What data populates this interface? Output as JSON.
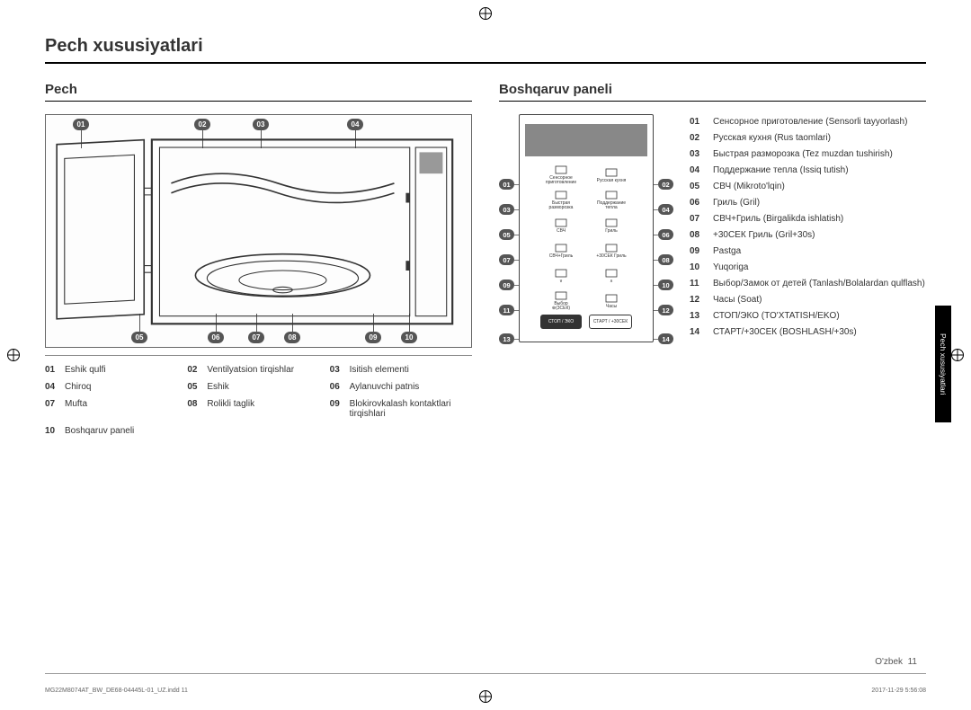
{
  "title": "Pech xususiyatlari",
  "left": {
    "heading": "Pech",
    "callouts_top": [
      "01",
      "02",
      "03",
      "04"
    ],
    "callouts_bottom": [
      "05",
      "06",
      "07",
      "08",
      "09",
      "10"
    ],
    "legend": [
      [
        {
          "n": "01",
          "t": "Eshik qulfi"
        },
        {
          "n": "02",
          "t": "Ventilyatsion tirqishlar"
        },
        {
          "n": "03",
          "t": "Isitish elementi"
        }
      ],
      [
        {
          "n": "04",
          "t": "Chiroq"
        },
        {
          "n": "05",
          "t": "Eshik"
        },
        {
          "n": "06",
          "t": "Aylanuvchi patnis"
        }
      ],
      [
        {
          "n": "07",
          "t": "Mufta"
        },
        {
          "n": "08",
          "t": "Rolikli taglik"
        },
        {
          "n": "09",
          "t": "Blokirovkalash kontaktlari tirqishlari"
        }
      ],
      [
        {
          "n": "10",
          "t": "Boshqaruv paneli"
        },
        {
          "n": "",
          "t": ""
        },
        {
          "n": "",
          "t": ""
        }
      ]
    ]
  },
  "right": {
    "heading": "Boshqaruv paneli",
    "panel_calls_left": [
      "01",
      "03",
      "05",
      "07",
      "09",
      "11",
      "13"
    ],
    "panel_calls_right": [
      "02",
      "04",
      "06",
      "08",
      "10",
      "12",
      "14"
    ],
    "buttons": [
      {
        "label": "Сенсорное\nприготовление"
      },
      {
        "label": "Русская кухня"
      },
      {
        "label": "Быстрая\nразморозка"
      },
      {
        "label": "Поддержание\nтепла"
      },
      {
        "label": "СВЧ"
      },
      {
        "label": "Гриль"
      },
      {
        "label": "СВЧ+Гриль"
      },
      {
        "label": "+30СЕК Гриль"
      },
      {
        "label": "∨"
      },
      {
        "label": "∧"
      },
      {
        "label": "Выбор\n⊕(3СЕК)"
      },
      {
        "label": "Часы"
      }
    ],
    "pill_left": "СТОП / ЭКО",
    "pill_right": "СТАРТ / +30СЕК",
    "list": [
      {
        "n": "01",
        "t": "Сенсорное приготовление (Sensorli tayyorlash)"
      },
      {
        "n": "02",
        "t": "Русская кухня (Rus taomlari)"
      },
      {
        "n": "03",
        "t": "Быстрая разморозка (Tez muzdan tushirish)"
      },
      {
        "n": "04",
        "t": "Поддержание тепла (Issiq tutish)"
      },
      {
        "n": "05",
        "t": "СВЧ (Mikroto'lqin)"
      },
      {
        "n": "06",
        "t": "Гриль (Gril)"
      },
      {
        "n": "07",
        "t": "СВЧ+Гриль (Birgalikda ishlatish)"
      },
      {
        "n": "08",
        "t": "+30СЕК Гриль (Gril+30s)"
      },
      {
        "n": "09",
        "t": "Pastga"
      },
      {
        "n": "10",
        "t": "Yuqoriga"
      },
      {
        "n": "11",
        "t": "Выбор/Замок от детей (Tanlash/Bolalardan qulflash)"
      },
      {
        "n": "12",
        "t": "Часы (Soat)"
      },
      {
        "n": "13",
        "t": "СТОП/ЭКО (TO'XTATISH/EKO)"
      },
      {
        "n": "14",
        "t": "СТАРТ/+30СЕК (BOSHLASH/+30s)"
      }
    ]
  },
  "side_tab": "Pech xususiyatlari",
  "page_label": "O'zbek",
  "page_num": "11",
  "footer_left": "MG22M8074AT_BW_DE68-04445L-01_UZ.indd   11",
  "footer_right": "2017-11-29   5:56:08"
}
